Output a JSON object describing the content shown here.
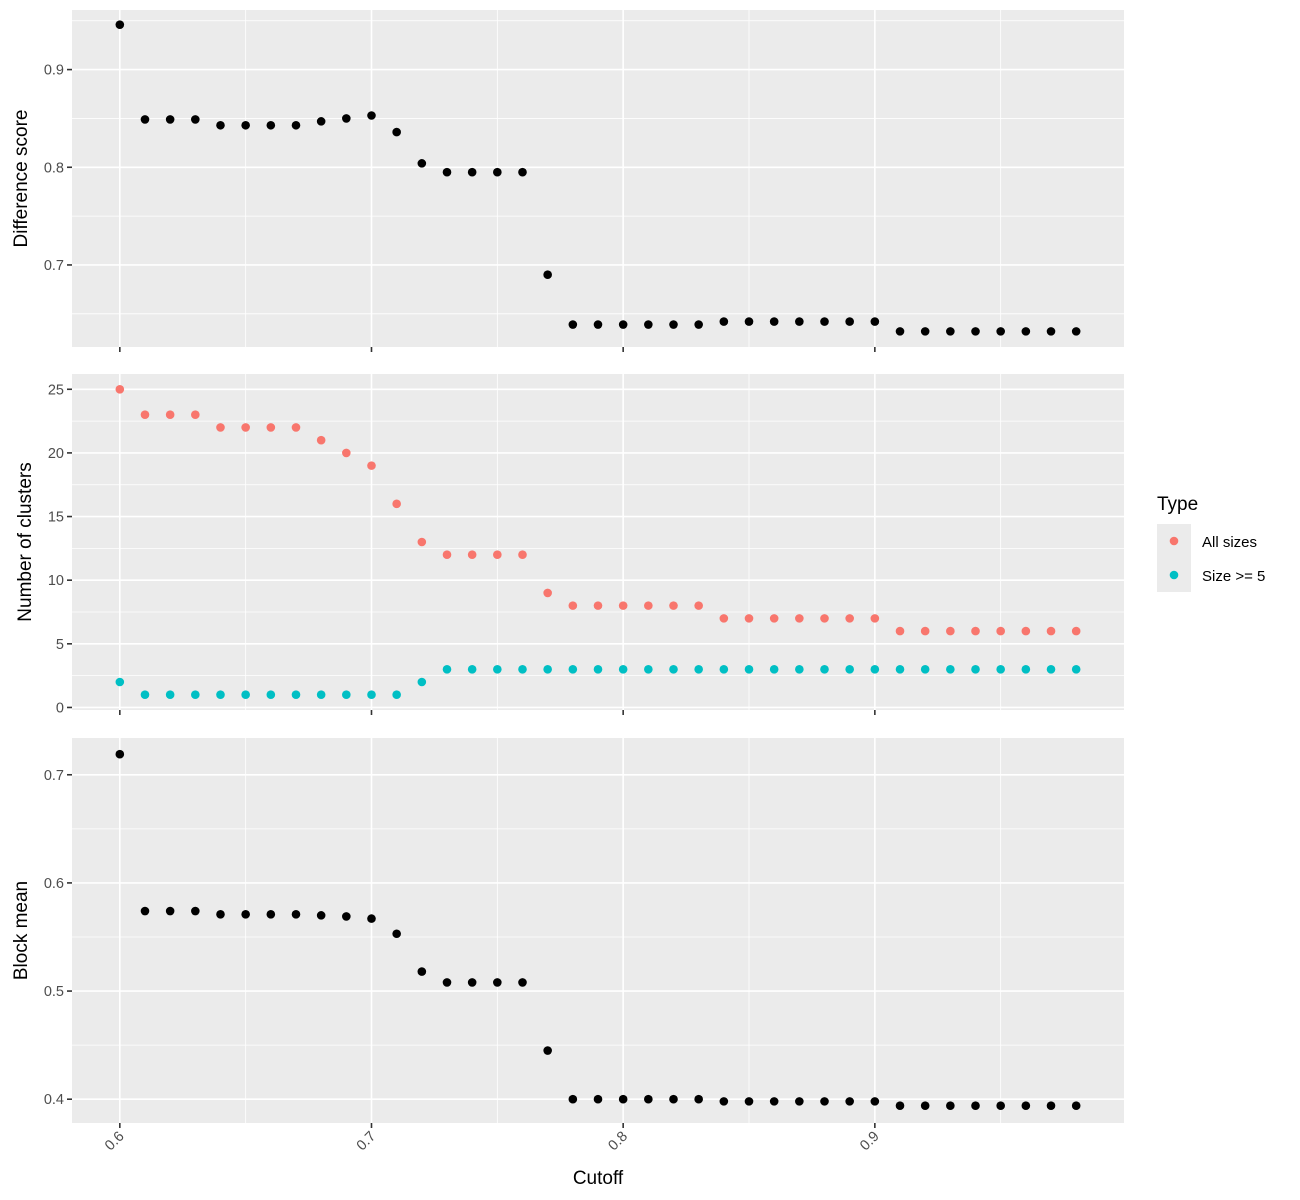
{
  "chart_data": [
    {
      "type": "scatter",
      "panel": "top",
      "title": "",
      "xlabel": "",
      "ylabel": "Difference score",
      "xlim": [
        0.581,
        0.999
      ],
      "ylim": [
        0.616,
        0.961
      ],
      "xticks": [
        0.6,
        0.7,
        0.8,
        0.9
      ],
      "xtick_labels_shown": false,
      "yticks": [
        0.7,
        0.8,
        0.9
      ],
      "ytick_labels": [
        "0.7",
        "0.8",
        "0.9"
      ],
      "grid": true,
      "series": [
        {
          "color": "#000000",
          "x": [
            0.6,
            0.61,
            0.62,
            0.63,
            0.64,
            0.65,
            0.66,
            0.67,
            0.68,
            0.69,
            0.7,
            0.71,
            0.72,
            0.73,
            0.74,
            0.75,
            0.76,
            0.77,
            0.78,
            0.79,
            0.8,
            0.81,
            0.82,
            0.83,
            0.84,
            0.85,
            0.86,
            0.87,
            0.88,
            0.89,
            0.9,
            0.91,
            0.92,
            0.93,
            0.94,
            0.95,
            0.96,
            0.97,
            0.98
          ],
          "y": [
            0.946,
            0.849,
            0.849,
            0.849,
            0.843,
            0.843,
            0.843,
            0.843,
            0.847,
            0.85,
            0.853,
            0.836,
            0.804,
            0.795,
            0.795,
            0.795,
            0.795,
            0.69,
            0.639,
            0.639,
            0.639,
            0.639,
            0.639,
            0.639,
            0.642,
            0.642,
            0.642,
            0.642,
            0.642,
            0.642,
            0.642,
            0.632,
            0.632,
            0.632,
            0.632,
            0.632,
            0.632,
            0.632,
            0.632
          ]
        }
      ]
    },
    {
      "type": "scatter",
      "panel": "middle",
      "title": "",
      "xlabel": "",
      "ylabel": "Number of clusters",
      "xlim": [
        0.581,
        0.999
      ],
      "ylim": [
        -0.2,
        26.2
      ],
      "xticks": [
        0.6,
        0.7,
        0.8,
        0.9
      ],
      "xtick_labels_shown": false,
      "yticks": [
        0,
        5,
        10,
        15,
        20,
        25
      ],
      "ytick_labels": [
        "0",
        "5",
        "10",
        "15",
        "20",
        "25"
      ],
      "grid": true,
      "legend": {
        "title": "Type",
        "position": "right"
      },
      "series": [
        {
          "name": "All sizes",
          "color": "#F8766D",
          "x": [
            0.6,
            0.61,
            0.62,
            0.63,
            0.64,
            0.65,
            0.66,
            0.67,
            0.68,
            0.69,
            0.7,
            0.71,
            0.72,
            0.73,
            0.74,
            0.75,
            0.76,
            0.77,
            0.78,
            0.79,
            0.8,
            0.81,
            0.82,
            0.83,
            0.84,
            0.85,
            0.86,
            0.87,
            0.88,
            0.89,
            0.9,
            0.91,
            0.92,
            0.93,
            0.94,
            0.95,
            0.96,
            0.97,
            0.98
          ],
          "y": [
            25,
            23,
            23,
            23,
            22,
            22,
            22,
            22,
            21,
            20,
            19,
            16,
            13,
            12,
            12,
            12,
            12,
            9,
            8,
            8,
            8,
            8,
            8,
            8,
            7,
            7,
            7,
            7,
            7,
            7,
            7,
            6,
            6,
            6,
            6,
            6,
            6,
            6,
            6
          ]
        },
        {
          "name": "Size >= 5",
          "color": "#00BFC4",
          "x": [
            0.6,
            0.61,
            0.62,
            0.63,
            0.64,
            0.65,
            0.66,
            0.67,
            0.68,
            0.69,
            0.7,
            0.71,
            0.72,
            0.73,
            0.74,
            0.75,
            0.76,
            0.77,
            0.78,
            0.79,
            0.8,
            0.81,
            0.82,
            0.83,
            0.84,
            0.85,
            0.86,
            0.87,
            0.88,
            0.89,
            0.9,
            0.91,
            0.92,
            0.93,
            0.94,
            0.95,
            0.96,
            0.97,
            0.98
          ],
          "y": [
            2,
            1,
            1,
            1,
            1,
            1,
            1,
            1,
            1,
            1,
            1,
            1,
            2,
            3,
            3,
            3,
            3,
            3,
            3,
            3,
            3,
            3,
            3,
            3,
            3,
            3,
            3,
            3,
            3,
            3,
            3,
            3,
            3,
            3,
            3,
            3,
            3,
            3,
            3
          ]
        }
      ]
    },
    {
      "type": "scatter",
      "panel": "bottom",
      "title": "",
      "xlabel": "Cutoff",
      "ylabel": "Block mean",
      "xlim": [
        0.581,
        0.999
      ],
      "ylim": [
        0.378,
        0.734
      ],
      "xticks": [
        0.6,
        0.7,
        0.8,
        0.9
      ],
      "xtick_labels": [
        "0.6",
        "0.7",
        "0.8",
        "0.9"
      ],
      "xtick_labels_shown": true,
      "yticks": [
        0.4,
        0.5,
        0.6,
        0.7
      ],
      "ytick_labels": [
        "0.4",
        "0.5",
        "0.6",
        "0.7"
      ],
      "grid": true,
      "series": [
        {
          "color": "#000000",
          "x": [
            0.6,
            0.61,
            0.62,
            0.63,
            0.64,
            0.65,
            0.66,
            0.67,
            0.68,
            0.69,
            0.7,
            0.71,
            0.72,
            0.73,
            0.74,
            0.75,
            0.76,
            0.77,
            0.78,
            0.79,
            0.8,
            0.81,
            0.82,
            0.83,
            0.84,
            0.85,
            0.86,
            0.87,
            0.88,
            0.89,
            0.9,
            0.91,
            0.92,
            0.93,
            0.94,
            0.95,
            0.96,
            0.97,
            0.98
          ],
          "y": [
            0.719,
            0.574,
            0.574,
            0.574,
            0.571,
            0.571,
            0.571,
            0.571,
            0.57,
            0.569,
            0.567,
            0.553,
            0.518,
            0.508,
            0.508,
            0.508,
            0.508,
            0.445,
            0.4,
            0.4,
            0.4,
            0.4,
            0.4,
            0.4,
            0.398,
            0.398,
            0.398,
            0.398,
            0.398,
            0.398,
            0.398,
            0.394,
            0.394,
            0.394,
            0.394,
            0.394,
            0.394,
            0.394,
            0.394
          ]
        }
      ]
    }
  ]
}
